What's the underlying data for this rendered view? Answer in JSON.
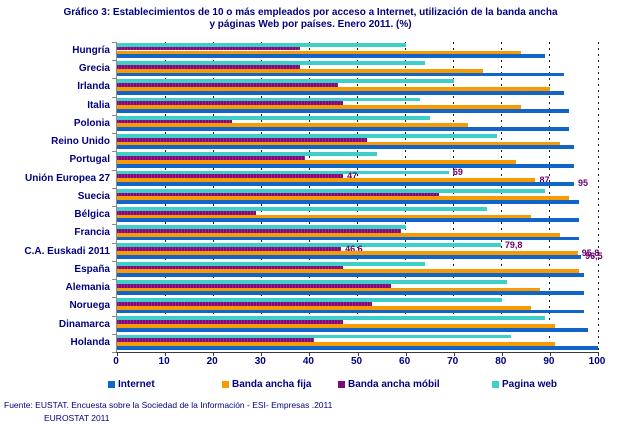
{
  "title": {
    "line1": "Gráfico 3: Establecimientos de 10 o más empleados por acceso a Internet, utilización de la banda ancha",
    "line2": "y páginas Web por países. Enero 2011. (%)"
  },
  "footer": {
    "line1": "Fuente: EUSTAT. Encuesta sobre la Sociedad de la Información - ESI- Empresas .2011",
    "line2": "EUROSTAT 2011"
  },
  "colors": {
    "text_navy": "#000080",
    "internet_blue": "#1164C8",
    "banda_fija_orange": "#F79B00",
    "banda_movil_purple": "#7A0A7A",
    "pagina_web_cyan": "#3FCFC9",
    "data_label_purple": "#6B006B"
  },
  "chart_data": {
    "type": "bar",
    "orientation": "horizontal",
    "title": "Gráfico 3: Establecimientos de 10 o más empleados por acceso a Internet, utilización de la banda ancha y páginas Web por países. Enero 2011. (%)",
    "xlabel": "",
    "ylabel": "",
    "xlim": [
      0,
      100
    ],
    "xticks": [
      0,
      10,
      20,
      30,
      40,
      50,
      60,
      70,
      80,
      90,
      100
    ],
    "grid": "dashed-vertical",
    "legend_position": "bottom",
    "categories": [
      "Hungría",
      "Grecia",
      "Irlanda",
      "Italia",
      "Polonia",
      "Reino Unido",
      "Portugal",
      "Unión Europea 27",
      "Suecia",
      "Bélgica",
      "Francia",
      "C.A. Euskadi 2011",
      "España",
      "Alemania",
      "Noruega",
      "Dinamarca",
      "Holanda"
    ],
    "series": [
      {
        "name": "Internet",
        "color": "#1164C8",
        "values": [
          89,
          93,
          93,
          94,
          94,
          95,
          95,
          95,
          96,
          96,
          96,
          96.5,
          97,
          97,
          97,
          98,
          100
        ]
      },
      {
        "name": "Banda ancha fija",
        "color": "#F79B00",
        "values": [
          84,
          76,
          90,
          84,
          73,
          92,
          83,
          87,
          94,
          86,
          92,
          95.8,
          96,
          88,
          86,
          91,
          91
        ]
      },
      {
        "name": "Banda ancha móbil",
        "color": "#7A0A7A",
        "values": [
          38,
          38,
          46,
          47,
          24,
          52,
          39,
          47,
          67,
          29,
          59,
          46.6,
          47,
          57,
          53,
          47,
          41
        ]
      },
      {
        "name": "Pagina web",
        "color": "#3FCFC9",
        "values": [
          60,
          64,
          70,
          63,
          65,
          79,
          54,
          69,
          89,
          77,
          60,
          79.8,
          64,
          81,
          80,
          89,
          82
        ]
      }
    ],
    "data_labels": {
      "Unión Europea 27": {
        "Internet": "95",
        "Banda ancha fija": "87",
        "Banda ancha móbil": "47",
        "Pagina web": "69"
      },
      "C.A. Euskadi 2011": {
        "Internet": "96,5",
        "Banda ancha fija": "95,8",
        "Banda ancha móbil": "46,6",
        "Pagina web": "79,8"
      }
    }
  }
}
